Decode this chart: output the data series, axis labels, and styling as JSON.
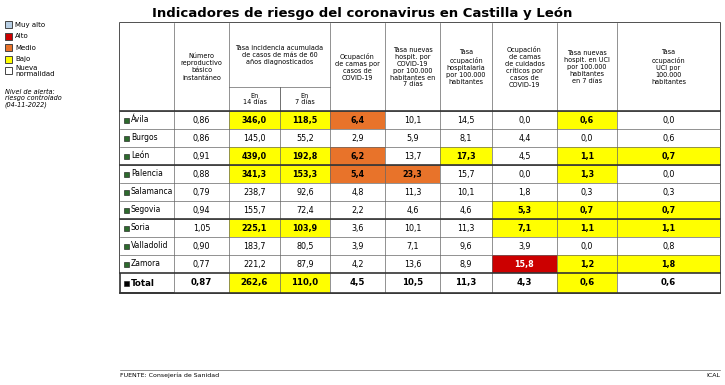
{
  "title": "Indicadores de riesgo del coronavirus en Castilla y León",
  "legend_items": [
    {
      "label": "Muy alto",
      "color": "#b8cfe4"
    },
    {
      "label": "Alto",
      "color": "#cc0000"
    },
    {
      "label": "Medio",
      "color": "#e8732a"
    },
    {
      "label": "Bajo",
      "color": "#ffff00"
    },
    {
      "label": "Nueva\nnormalidad",
      "color": "#ffffff"
    }
  ],
  "nivel_alerta_line1": "Nivel de alerta:",
  "nivel_alerta_line2": "riesgo controlado",
  "nivel_alerta_line3": "(04-11-2022)",
  "col_headers_main": [
    "Número\nreproductivo\nbásico\ninstantáneo",
    "Tasa incidencia acumulada\nde casos de más de 60\naños diagnosticados",
    "Ocupación\nde camas por\ncasos de\nCOVID-19",
    "Tasa nuevas\nhospit. por\nCOVID-19\npor 100.000\nhabitantes en\n7 días",
    "Tasa\nocupación\nhospitalaria\npor 100.000\nhabitantes",
    "Ocupación\nde camas\nde cuidados\ncríticos por\ncasos de\nCOVID-19",
    "Tasa nuevas\nhospit. en UCI\npor 100.000\nhabitantes\nen 7 días",
    "Tasa\nocupación\nUCI por\n100.000\nhabitantes"
  ],
  "sub_headers": [
    "En\n14 días",
    "En\n7 días"
  ],
  "rows": [
    {
      "name": "Ávila",
      "sq_color": "#2d6a2d",
      "values": [
        "0,86",
        "346,0",
        "118,5",
        "6,4",
        "10,1",
        "14,5",
        "0,0",
        "0,6",
        "0,0"
      ],
      "bg": [
        "#ffffff",
        "#ffff00",
        "#ffff00",
        "#e8732a",
        "#ffffff",
        "#ffffff",
        "#ffffff",
        "#ffff00",
        "#ffffff"
      ]
    },
    {
      "name": "Burgos",
      "sq_color": "#2d6a2d",
      "values": [
        "0,86",
        "145,0",
        "55,2",
        "2,9",
        "5,9",
        "8,1",
        "4,4",
        "0,0",
        "0,6"
      ],
      "bg": [
        "#ffffff",
        "#ffffff",
        "#ffffff",
        "#ffffff",
        "#ffffff",
        "#ffffff",
        "#ffffff",
        "#ffffff",
        "#ffffff"
      ]
    },
    {
      "name": "León",
      "sq_color": "#2d6a2d",
      "values": [
        "0,91",
        "439,0",
        "192,8",
        "6,2",
        "13,7",
        "17,3",
        "4,5",
        "1,1",
        "0,7"
      ],
      "bg": [
        "#ffffff",
        "#ffff00",
        "#ffff00",
        "#e8732a",
        "#ffffff",
        "#ffff00",
        "#ffffff",
        "#ffff00",
        "#ffff00"
      ]
    },
    {
      "name": "Palencia",
      "sq_color": "#2d6a2d",
      "values": [
        "0,88",
        "341,3",
        "153,3",
        "5,4",
        "23,3",
        "15,7",
        "0,0",
        "1,3",
        "0,0"
      ],
      "bg": [
        "#ffffff",
        "#ffff00",
        "#ffff00",
        "#e8732a",
        "#e8732a",
        "#ffffff",
        "#ffffff",
        "#ffff00",
        "#ffffff"
      ]
    },
    {
      "name": "Salamanca",
      "sq_color": "#2d6a2d",
      "values": [
        "0,79",
        "238,7",
        "92,6",
        "4,8",
        "11,3",
        "10,1",
        "1,8",
        "0,3",
        "0,3"
      ],
      "bg": [
        "#ffffff",
        "#ffffff",
        "#ffffff",
        "#ffffff",
        "#ffffff",
        "#ffffff",
        "#ffffff",
        "#ffffff",
        "#ffffff"
      ]
    },
    {
      "name": "Segovia",
      "sq_color": "#2d6a2d",
      "values": [
        "0,94",
        "155,7",
        "72,4",
        "2,2",
        "4,6",
        "4,6",
        "5,3",
        "0,7",
        "0,7"
      ],
      "bg": [
        "#ffffff",
        "#ffffff",
        "#ffffff",
        "#ffffff",
        "#ffffff",
        "#ffffff",
        "#ffff00",
        "#ffff00",
        "#ffff00"
      ]
    },
    {
      "name": "Soria",
      "sq_color": "#2d6a2d",
      "values": [
        "1,05",
        "225,1",
        "103,9",
        "3,6",
        "10,1",
        "11,3",
        "7,1",
        "1,1",
        "1,1"
      ],
      "bg": [
        "#ffffff",
        "#ffff00",
        "#ffff00",
        "#ffffff",
        "#ffffff",
        "#ffffff",
        "#ffff00",
        "#ffff00",
        "#ffff00"
      ]
    },
    {
      "name": "Valladolid",
      "sq_color": "#2d6a2d",
      "values": [
        "0,90",
        "183,7",
        "80,5",
        "3,9",
        "7,1",
        "9,6",
        "3,9",
        "0,0",
        "0,8"
      ],
      "bg": [
        "#ffffff",
        "#ffffff",
        "#ffffff",
        "#ffffff",
        "#ffffff",
        "#ffffff",
        "#ffffff",
        "#ffffff",
        "#ffffff"
      ]
    },
    {
      "name": "Zamora",
      "sq_color": "#2d6a2d",
      "values": [
        "0,77",
        "221,2",
        "87,9",
        "4,2",
        "13,6",
        "8,9",
        "15,8",
        "1,2",
        "1,8"
      ],
      "bg": [
        "#ffffff",
        "#ffffff",
        "#ffffff",
        "#ffffff",
        "#ffffff",
        "#ffffff",
        "#cc0000",
        "#ffff00",
        "#ffff00"
      ]
    }
  ],
  "total_row": {
    "name": "Total",
    "values": [
      "0,87",
      "262,6",
      "110,0",
      "4,5",
      "10,5",
      "11,3",
      "4,3",
      "0,6",
      "0,6"
    ],
    "bg": [
      "#ffffff",
      "#ffff00",
      "#ffff00",
      "#ffffff",
      "#ffffff",
      "#ffffff",
      "#ffffff",
      "#ffff00",
      "#ffffff"
    ]
  },
  "group_dividers_after": [
    2,
    5
  ],
  "footer_left": "FUENTE: Consejería de Sanidad",
  "footer_right": "ICAL",
  "border_color": "#666666",
  "thick_border": "#333333"
}
